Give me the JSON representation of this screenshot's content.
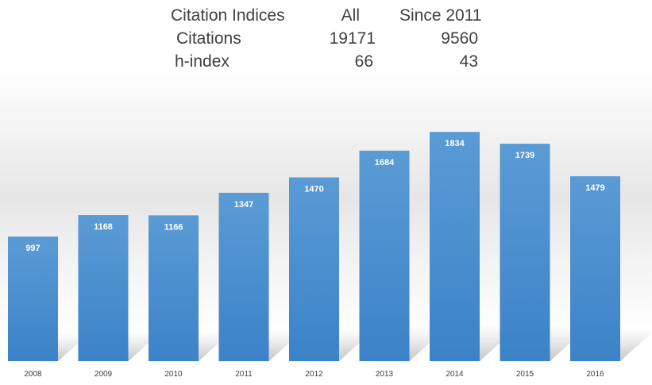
{
  "citation_table": {
    "header": {
      "label": "Citation Indices",
      "all": "All",
      "since": "Since 2011"
    },
    "rows": [
      {
        "label": "Citations",
        "all": "19171",
        "since": "9560"
      },
      {
        "label": "h-index",
        "all": "66",
        "since": "43"
      }
    ]
  },
  "chart_data": {
    "type": "bar",
    "title": "",
    "xlabel": "",
    "ylabel": "",
    "categories": [
      "2008",
      "2009",
      "2010",
      "2011",
      "2012",
      "2013",
      "2014",
      "2015",
      "2016"
    ],
    "values": [
      997,
      1168,
      1166,
      1347,
      1470,
      1684,
      1834,
      1739,
      1479
    ],
    "ylim": [
      0,
      1900
    ],
    "data_labels": true,
    "grid": false,
    "legend": "none",
    "bar_color": "#4a8fd4",
    "bar_color_top": "#5b9bd5",
    "bar_color_bottom": "#3f83c9"
  }
}
